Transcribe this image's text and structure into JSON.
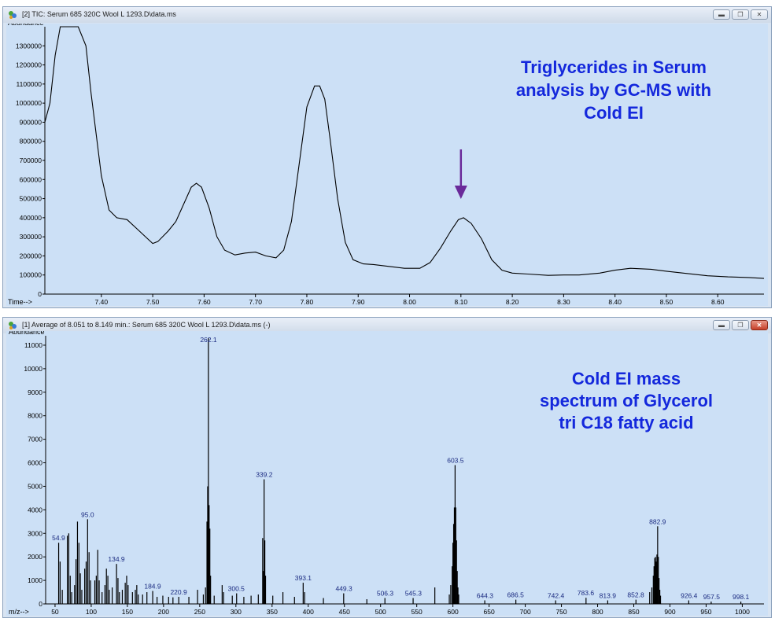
{
  "top_window": {
    "title": "[2] TIC: Serum 685 320C Wool L 1293.D\\data.ms",
    "icon": "chromatogram-app-icon",
    "buttons": [
      "minimize-icon",
      "restore-icon",
      "close-icon"
    ]
  },
  "bottom_window": {
    "title": "[1] Average of 8.051 to 8.149 min.: Serum 685 320C Wool L 1293.D\\data.ms (-)",
    "icon": "spectrum-app-icon",
    "buttons": [
      "minimize-icon",
      "restore-icon",
      "close-icon"
    ]
  },
  "colors": {
    "plot_bg": "#cce0f6",
    "trace": "#000000",
    "annotation": "#1428dc",
    "arrow": "#6a2a9a",
    "peak_label": "#1a2a80"
  },
  "chart_data": [
    {
      "type": "line",
      "xlabel": "Time-->",
      "ylabel": "Abundance",
      "xlim": [
        7.29,
        8.69
      ],
      "ylim": [
        0,
        1400000
      ],
      "xticks": [
        "7.40",
        "7.50",
        "7.60",
        "7.70",
        "7.80",
        "7.90",
        "8.00",
        "8.10",
        "8.20",
        "8.30",
        "8.40",
        "8.50",
        "8.60"
      ],
      "yticks": [
        "0",
        "100000",
        "200000",
        "300000",
        "400000",
        "500000",
        "600000",
        "700000",
        "800000",
        "900000",
        "1000000",
        "1100000",
        "1200000",
        "1300000"
      ],
      "annotation": [
        "Triglycerides in Serum",
        "analysis by GC-MS with",
        "Cold EI"
      ],
      "arrow_at_x": 8.1,
      "series": [
        {
          "x": [
            7.29,
            7.3,
            7.31,
            7.32,
            7.34,
            7.355,
            7.37,
            7.38,
            7.4,
            7.415,
            7.43,
            7.45,
            7.47,
            7.49,
            7.5,
            7.51,
            7.53,
            7.545,
            7.56,
            7.575,
            7.585,
            7.595,
            7.61,
            7.625,
            7.64,
            7.66,
            7.68,
            7.7,
            7.72,
            7.74,
            7.755,
            7.77,
            7.785,
            7.8,
            7.815,
            7.825,
            7.835,
            7.845,
            7.86,
            7.875,
            7.89,
            7.91,
            7.93,
            7.96,
            7.99,
            8.02,
            8.04,
            8.06,
            8.08,
            8.095,
            8.105,
            8.12,
            8.14,
            8.16,
            8.18,
            8.2,
            8.23,
            8.27,
            8.3,
            8.33,
            8.37,
            8.4,
            8.43,
            8.47,
            8.5,
            8.54,
            8.58,
            8.62,
            8.66,
            8.69
          ],
          "y": [
            900000,
            1000000,
            1250000,
            1400000,
            1400000,
            1400000,
            1300000,
            1050000,
            620000,
            440000,
            400000,
            390000,
            340000,
            290000,
            265000,
            275000,
            330000,
            380000,
            470000,
            560000,
            580000,
            560000,
            450000,
            300000,
            230000,
            205000,
            215000,
            220000,
            200000,
            190000,
            230000,
            380000,
            680000,
            980000,
            1090000,
            1090000,
            1020000,
            820000,
            500000,
            270000,
            180000,
            158000,
            155000,
            145000,
            135000,
            135000,
            165000,
            240000,
            330000,
            390000,
            400000,
            370000,
            290000,
            180000,
            125000,
            110000,
            105000,
            98000,
            100000,
            100000,
            110000,
            125000,
            135000,
            130000,
            120000,
            108000,
            96000,
            90000,
            87000,
            82000
          ]
        }
      ]
    },
    {
      "type": "bar",
      "xlabel": "m/z-->",
      "ylabel": "Abundance",
      "xlim": [
        37,
        1030
      ],
      "ylim": [
        0,
        11400
      ],
      "xticks": [
        "50",
        "100",
        "150",
        "200",
        "250",
        "300",
        "350",
        "400",
        "450",
        "500",
        "550",
        "600",
        "650",
        "700",
        "750",
        "800",
        "850",
        "900",
        "950",
        "1000"
      ],
      "yticks": [
        "0",
        "1000",
        "2000",
        "3000",
        "4000",
        "5000",
        "6000",
        "7000",
        "8000",
        "9000",
        "10000",
        "11000"
      ],
      "annotation": [
        "Cold EI mass",
        "spectrum of Glycerol",
        "tri C18 fatty acid"
      ],
      "peak_labels": [
        {
          "mz": 54.9,
          "label": "54.9"
        },
        {
          "mz": 95.0,
          "label": "95.0"
        },
        {
          "mz": 134.9,
          "label": "134.9"
        },
        {
          "mz": 184.9,
          "label": "184.9"
        },
        {
          "mz": 220.9,
          "label": "220.9"
        },
        {
          "mz": 262.1,
          "label": "262.1"
        },
        {
          "mz": 300.5,
          "label": "300.5"
        },
        {
          "mz": 339.2,
          "label": "339.2"
        },
        {
          "mz": 393.1,
          "label": "393.1"
        },
        {
          "mz": 449.3,
          "label": "449.3"
        },
        {
          "mz": 506.3,
          "label": "506.3"
        },
        {
          "mz": 545.3,
          "label": "545.3"
        },
        {
          "mz": 603.5,
          "label": "603.5"
        },
        {
          "mz": 644.3,
          "label": "644.3"
        },
        {
          "mz": 686.5,
          "label": "686.5"
        },
        {
          "mz": 742.4,
          "label": "742.4"
        },
        {
          "mz": 783.6,
          "label": "783.6"
        },
        {
          "mz": 813.9,
          "label": "813.9"
        },
        {
          "mz": 852.8,
          "label": "852.8"
        },
        {
          "mz": 882.9,
          "label": "882.9"
        },
        {
          "mz": 926.4,
          "label": "926.4"
        },
        {
          "mz": 957.5,
          "label": "957.5"
        },
        {
          "mz": 998.1,
          "label": "998.1"
        }
      ],
      "peaks": [
        [
          55,
          2600
        ],
        [
          57,
          1800
        ],
        [
          60,
          600
        ],
        [
          67,
          2900
        ],
        [
          69,
          3000
        ],
        [
          71,
          1200
        ],
        [
          73,
          500
        ],
        [
          77,
          800
        ],
        [
          79,
          1900
        ],
        [
          81,
          3500
        ],
        [
          83,
          2600
        ],
        [
          85,
          1300
        ],
        [
          87,
          600
        ],
        [
          91,
          1500
        ],
        [
          93,
          1800
        ],
        [
          95,
          3600
        ],
        [
          97,
          2200
        ],
        [
          99,
          1000
        ],
        [
          105,
          1000
        ],
        [
          107,
          1200
        ],
        [
          109,
          2300
        ],
        [
          111,
          1000
        ],
        [
          115,
          500
        ],
        [
          119,
          800
        ],
        [
          121,
          1500
        ],
        [
          123,
          1200
        ],
        [
          125,
          600
        ],
        [
          129,
          700
        ],
        [
          135,
          1700
        ],
        [
          137,
          1100
        ],
        [
          139,
          500
        ],
        [
          143,
          600
        ],
        [
          147,
          900
        ],
        [
          149,
          1200
        ],
        [
          151,
          800
        ],
        [
          157,
          500
        ],
        [
          161,
          600
        ],
        [
          163,
          800
        ],
        [
          165,
          400
        ],
        [
          171,
          400
        ],
        [
          177,
          500
        ],
        [
          185,
          550
        ],
        [
          191,
          300
        ],
        [
          199,
          350
        ],
        [
          207,
          300
        ],
        [
          213,
          280
        ],
        [
          221,
          300
        ],
        [
          235,
          300
        ],
        [
          247,
          600
        ],
        [
          255,
          400
        ],
        [
          258,
          700
        ],
        [
          260,
          3500
        ],
        [
          261,
          5000
        ],
        [
          262,
          11300
        ],
        [
          263,
          4200
        ],
        [
          264,
          3200
        ],
        [
          265,
          1200
        ],
        [
          270,
          350
        ],
        [
          281,
          800
        ],
        [
          283,
          500
        ],
        [
          295,
          350
        ],
        [
          301,
          450
        ],
        [
          311,
          300
        ],
        [
          321,
          350
        ],
        [
          331,
          400
        ],
        [
          337,
          2800
        ],
        [
          338,
          1400
        ],
        [
          339,
          5300
        ],
        [
          340,
          2700
        ],
        [
          341,
          1200
        ],
        [
          351,
          350
        ],
        [
          365,
          500
        ],
        [
          381,
          300
        ],
        [
          393,
          900
        ],
        [
          395,
          500
        ],
        [
          421,
          250
        ],
        [
          449,
          450
        ],
        [
          481,
          200
        ],
        [
          506,
          250
        ],
        [
          545,
          250
        ],
        [
          575,
          700
        ],
        [
          595,
          400
        ],
        [
          597,
          800
        ],
        [
          599,
          1600
        ],
        [
          600,
          2600
        ],
        [
          601,
          3400
        ],
        [
          602,
          4100
        ],
        [
          603,
          5900
        ],
        [
          604,
          4100
        ],
        [
          605,
          2700
        ],
        [
          606,
          1400
        ],
        [
          607,
          700
        ],
        [
          608,
          400
        ],
        [
          644,
          150
        ],
        [
          687,
          180
        ],
        [
          742,
          150
        ],
        [
          784,
          260
        ],
        [
          814,
          150
        ],
        [
          853,
          180
        ],
        [
          872,
          500
        ],
        [
          875,
          700
        ],
        [
          877,
          1200
        ],
        [
          878,
          1600
        ],
        [
          879,
          1950
        ],
        [
          880,
          2000
        ],
        [
          881,
          1800
        ],
        [
          882,
          2100
        ],
        [
          883,
          3300
        ],
        [
          884,
          2000
        ],
        [
          885,
          1100
        ],
        [
          886,
          600
        ],
        [
          887,
          350
        ],
        [
          926,
          150
        ],
        [
          957,
          100
        ],
        [
          998,
          100
        ]
      ]
    }
  ]
}
